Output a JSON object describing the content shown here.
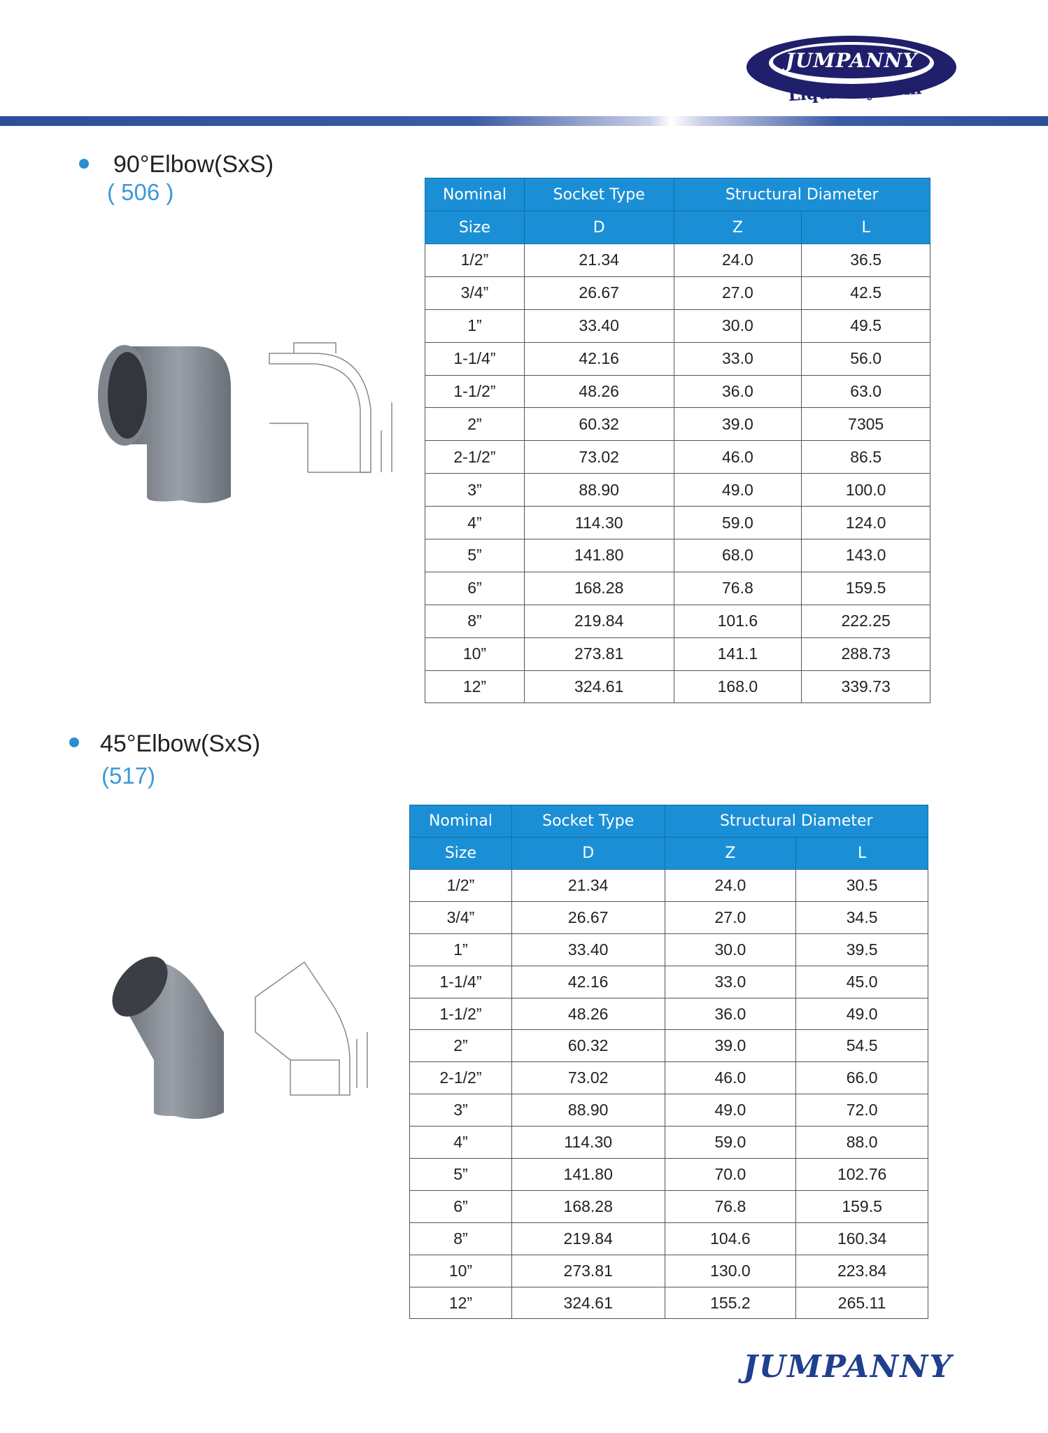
{
  "brand": {
    "logo_name": "JUMPANNY",
    "logo_tagline": "Liquid System",
    "footer_logo": "JUMPANNY",
    "color_primary": "#1f1f6b",
    "color_accent": "#1b8fd6"
  },
  "sections": [
    {
      "title": "90°Elbow(SxS)",
      "code": "( 506 )",
      "image_icon": "elbow-90-icon",
      "headers": {
        "nominal": "Nominal",
        "size": "Size",
        "socket": "Socket Type",
        "d": "D",
        "structural": "Structural Diameter",
        "z": "Z",
        "l": "L"
      },
      "rows": [
        [
          "1/2”",
          "21.34",
          "24.0",
          "36.5"
        ],
        [
          "3/4”",
          "26.67",
          "27.0",
          "42.5"
        ],
        [
          "1”",
          "33.40",
          "30.0",
          "49.5"
        ],
        [
          "1-1/4”",
          "42.16",
          "33.0",
          "56.0"
        ],
        [
          "1-1/2”",
          "48.26",
          "36.0",
          "63.0"
        ],
        [
          "2”",
          "60.32",
          "39.0",
          "7305"
        ],
        [
          "2-1/2”",
          "73.02",
          "46.0",
          "86.5"
        ],
        [
          "3”",
          "88.90",
          "49.0",
          "100.0"
        ],
        [
          "4”",
          "114.30",
          "59.0",
          "124.0"
        ],
        [
          "5”",
          "141.80",
          "68.0",
          "143.0"
        ],
        [
          "6”",
          "168.28",
          "76.8",
          "159.5"
        ],
        [
          "8”",
          "219.84",
          "101.6",
          "222.25"
        ],
        [
          "10”",
          "273.81",
          "141.1",
          "288.73"
        ],
        [
          "12”",
          "324.61",
          "168.0",
          "339.73"
        ]
      ]
    },
    {
      "title": "45°Elbow(SxS)",
      "code": "(517)",
      "image_icon": "elbow-45-icon",
      "headers": {
        "nominal": "Nominal",
        "size": "Size",
        "socket": "Socket Type",
        "d": "D",
        "structural": "Structural Diameter",
        "z": "Z",
        "l": "L"
      },
      "rows": [
        [
          "1/2”",
          "21.34",
          "24.0",
          "30.5"
        ],
        [
          "3/4”",
          "26.67",
          "27.0",
          "34.5"
        ],
        [
          "1”",
          "33.40",
          "30.0",
          "39.5"
        ],
        [
          "1-1/4”",
          "42.16",
          "33.0",
          "45.0"
        ],
        [
          "1-1/2”",
          "48.26",
          "36.0",
          "49.0"
        ],
        [
          "2”",
          "60.32",
          "39.0",
          "54.5"
        ],
        [
          "2-1/2”",
          "73.02",
          "46.0",
          "66.0"
        ],
        [
          "3”",
          "88.90",
          "49.0",
          "72.0"
        ],
        [
          "4”",
          "114.30",
          "59.0",
          "88.0"
        ],
        [
          "5”",
          "141.80",
          "70.0",
          "102.76"
        ],
        [
          "6”",
          "168.28",
          "76.8",
          "159.5"
        ],
        [
          "8”",
          "219.84",
          "104.6",
          "160.34"
        ],
        [
          "10”",
          "273.81",
          "130.0",
          "223.84"
        ],
        [
          "12”",
          "324.61",
          "155.2",
          "265.11"
        ]
      ]
    }
  ]
}
